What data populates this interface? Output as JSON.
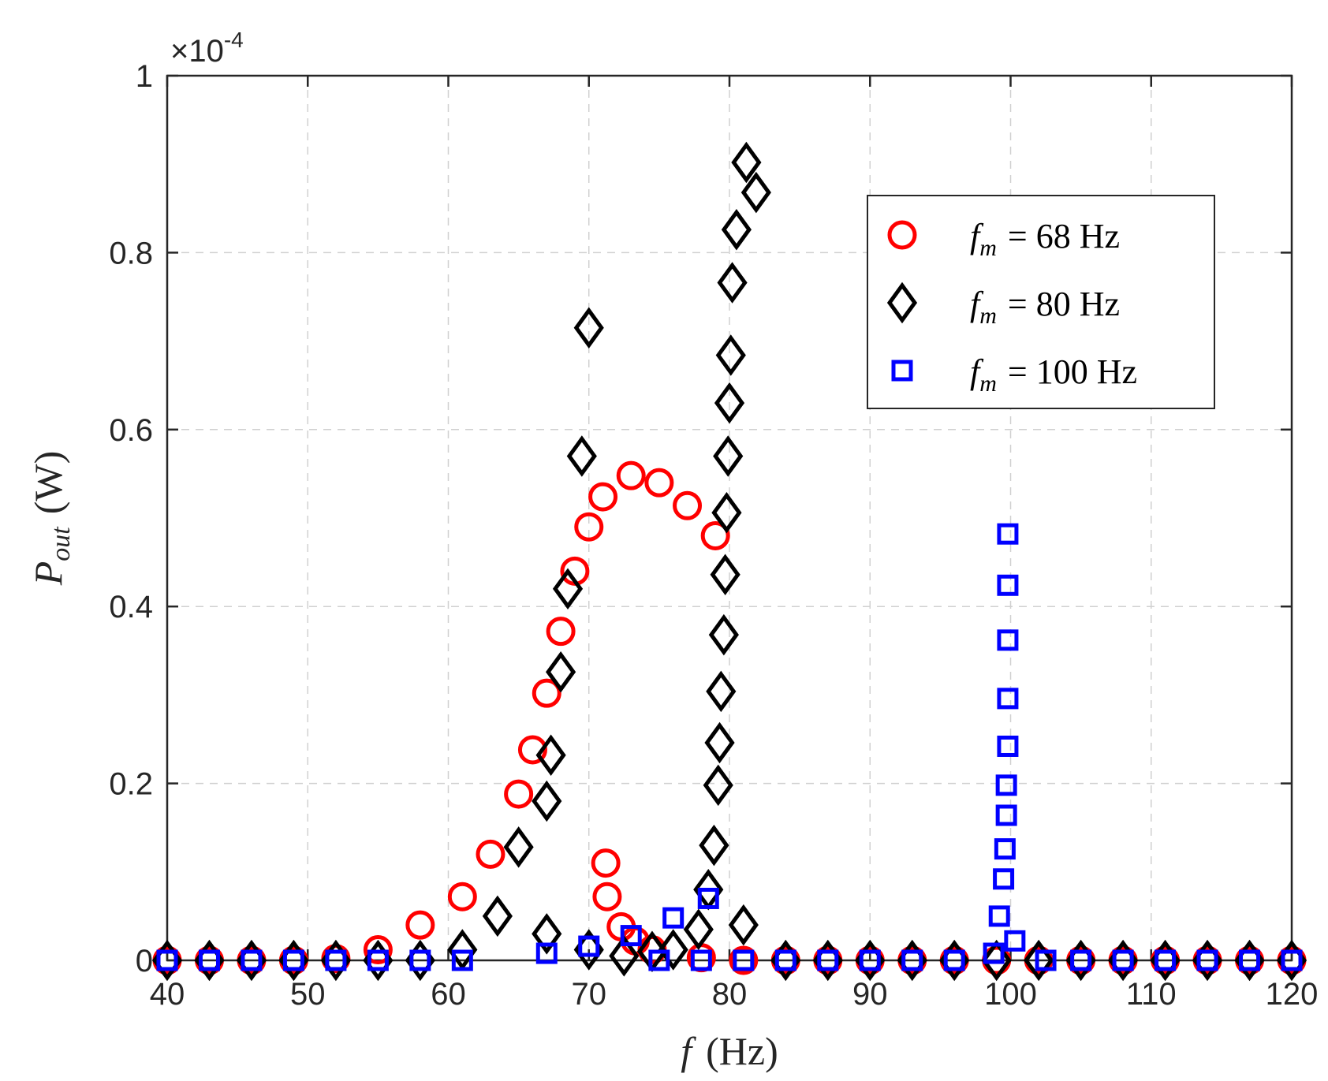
{
  "chart_data": {
    "type": "scatter",
    "xlabel": {
      "symbol": "f",
      "unit": "(Hz)"
    },
    "ylabel": {
      "symbol": "P",
      "subscript": "out",
      "unit": "(W)"
    },
    "y_multiplier": {
      "base": "×10",
      "exponent": "-4"
    },
    "xlim": [
      40,
      120
    ],
    "ylim": [
      0,
      1
    ],
    "y_scale_factor": 0.0001,
    "xticks": [
      40,
      50,
      60,
      70,
      80,
      90,
      100,
      110,
      120
    ],
    "yticks": [
      0,
      0.2,
      0.4,
      0.6,
      0.8,
      1
    ],
    "ytick_labels": [
      "0",
      "0.2",
      "0.4",
      "0.6",
      "0.8",
      "1"
    ],
    "xtick_labels": [
      "40",
      "50",
      "60",
      "70",
      "80",
      "90",
      "100",
      "110",
      "120"
    ],
    "grid": true,
    "legend_position": "top-right",
    "series": [
      {
        "name": "f_m = 68 Hz",
        "legend": {
          "symbol": "f",
          "subscript": "m",
          "rest": "= 68 Hz"
        },
        "marker": "circle",
        "color": "#ff0000",
        "points": [
          [
            40,
            0
          ],
          [
            43,
            0
          ],
          [
            46,
            0
          ],
          [
            49,
            0
          ],
          [
            52,
            0.002
          ],
          [
            55,
            0.012
          ],
          [
            58,
            0.04
          ],
          [
            61,
            0.072
          ],
          [
            63,
            0.12
          ],
          [
            65,
            0.188
          ],
          [
            66,
            0.238
          ],
          [
            67,
            0.302
          ],
          [
            68,
            0.372
          ],
          [
            69,
            0.44
          ],
          [
            70,
            0.49
          ],
          [
            71,
            0.524
          ],
          [
            73,
            0.548
          ],
          [
            75,
            0.54
          ],
          [
            77,
            0.514
          ],
          [
            79,
            0.48
          ],
          [
            71.2,
            0.11
          ],
          [
            71.3,
            0.072
          ],
          [
            72.3,
            0.038
          ],
          [
            73.3,
            0.022
          ],
          [
            74.5,
            0.012
          ],
          [
            78,
            0.003
          ],
          [
            81,
            0
          ],
          [
            84,
            0
          ],
          [
            87,
            0
          ],
          [
            90,
            0
          ],
          [
            93,
            0
          ],
          [
            96,
            0
          ],
          [
            99,
            0
          ],
          [
            102,
            0
          ],
          [
            105,
            0
          ],
          [
            108,
            0
          ],
          [
            111,
            0
          ],
          [
            114,
            0
          ],
          [
            117,
            0
          ],
          [
            120,
            0
          ]
        ]
      },
      {
        "name": "f_m = 80 Hz",
        "legend": {
          "symbol": "f",
          "subscript": "m",
          "rest": "= 80 Hz"
        },
        "marker": "diamond",
        "color": "#000000",
        "points": [
          [
            40,
            0
          ],
          [
            43,
            0
          ],
          [
            46,
            0
          ],
          [
            49,
            0
          ],
          [
            52,
            0
          ],
          [
            55,
            0
          ],
          [
            58,
            0
          ],
          [
            61,
            0.012
          ],
          [
            63.5,
            0.05
          ],
          [
            65,
            0.128
          ],
          [
            67,
            0.18
          ],
          [
            67.3,
            0.232
          ],
          [
            68,
            0.326
          ],
          [
            68.5,
            0.42
          ],
          [
            69.5,
            0.57
          ],
          [
            70,
            0.715
          ],
          [
            67,
            0.03
          ],
          [
            70,
            0.012
          ],
          [
            72.5,
            0.005
          ],
          [
            74.5,
            0.01
          ],
          [
            76,
            0.012
          ],
          [
            77.8,
            0.035
          ],
          [
            78.5,
            0.08
          ],
          [
            78.9,
            0.13
          ],
          [
            79.2,
            0.198
          ],
          [
            79.3,
            0.246
          ],
          [
            79.4,
            0.304
          ],
          [
            79.6,
            0.368
          ],
          [
            79.7,
            0.436
          ],
          [
            79.8,
            0.506
          ],
          [
            79.9,
            0.57
          ],
          [
            80,
            0.63
          ],
          [
            80.1,
            0.684
          ],
          [
            80.2,
            0.766
          ],
          [
            80.5,
            0.826
          ],
          [
            81.2,
            0.902
          ],
          [
            81.9,
            0.868
          ],
          [
            81,
            0.04
          ],
          [
            84,
            0
          ],
          [
            87,
            0
          ],
          [
            90,
            0
          ],
          [
            93,
            0
          ],
          [
            96,
            0
          ],
          [
            99,
            0
          ],
          [
            102,
            0
          ],
          [
            105,
            0
          ],
          [
            108,
            0
          ],
          [
            111,
            0
          ],
          [
            114,
            0
          ],
          [
            117,
            0
          ],
          [
            120,
            0
          ]
        ]
      },
      {
        "name": "f_m = 100 Hz",
        "legend": {
          "symbol": "f",
          "subscript": "m",
          "rest": "= 100 Hz"
        },
        "marker": "square",
        "color": "#0000ff",
        "points": [
          [
            40,
            0
          ],
          [
            43,
            0
          ],
          [
            46,
            0
          ],
          [
            49,
            0
          ],
          [
            52,
            0
          ],
          [
            55,
            0
          ],
          [
            58,
            0
          ],
          [
            61,
            0
          ],
          [
            67,
            0.008
          ],
          [
            70,
            0.016
          ],
          [
            73,
            0.028
          ],
          [
            75,
            0
          ],
          [
            76,
            0.048
          ],
          [
            78,
            0
          ],
          [
            78.5,
            0.07
          ],
          [
            81,
            0
          ],
          [
            84,
            0
          ],
          [
            87,
            0
          ],
          [
            90,
            0
          ],
          [
            93,
            0
          ],
          [
            96,
            0
          ],
          [
            98.8,
            0.008
          ],
          [
            99.2,
            0.05
          ],
          [
            99.5,
            0.092
          ],
          [
            99.6,
            0.126
          ],
          [
            99.7,
            0.164
          ],
          [
            99.7,
            0.198
          ],
          [
            99.8,
            0.242
          ],
          [
            99.8,
            0.296
          ],
          [
            99.8,
            0.362
          ],
          [
            99.8,
            0.424
          ],
          [
            99.8,
            0.482
          ],
          [
            100.3,
            0.022
          ],
          [
            102.5,
            0
          ],
          [
            105,
            0
          ],
          [
            108,
            0
          ],
          [
            111,
            0
          ],
          [
            114,
            0
          ],
          [
            117,
            0
          ],
          [
            120,
            0
          ]
        ]
      }
    ]
  }
}
